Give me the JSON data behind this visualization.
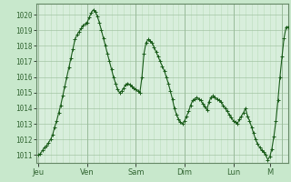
{
  "background_color": "#c8e8cc",
  "plot_bg_color": "#d8eedc",
  "line_color": "#1a5c1a",
  "marker_color": "#1a5c1a",
  "grid_major_color": "#99bb99",
  "grid_minor_color": "#bbddbb",
  "ylim": [
    1010.5,
    1020.7
  ],
  "yticks": [
    1011,
    1012,
    1013,
    1014,
    1015,
    1016,
    1017,
    1018,
    1019,
    1020
  ],
  "day_labels": [
    "Jeu",
    "Ven",
    "Sam",
    "Dim",
    "Lun",
    "M"
  ],
  "day_positions": [
    0,
    24,
    48,
    72,
    96,
    114
  ],
  "xlim": [
    -1,
    123
  ],
  "x_values": [
    0,
    1,
    2,
    3,
    4,
    5,
    6,
    7,
    8,
    9,
    10,
    11,
    12,
    13,
    14,
    15,
    16,
    17,
    18,
    19,
    20,
    21,
    22,
    23,
    24,
    25,
    26,
    27,
    28,
    29,
    30,
    31,
    32,
    33,
    34,
    35,
    36,
    37,
    38,
    39,
    40,
    41,
    42,
    43,
    44,
    45,
    46,
    47,
    48,
    49,
    50,
    51,
    52,
    53,
    54,
    55,
    56,
    57,
    58,
    59,
    60,
    61,
    62,
    63,
    64,
    65,
    66,
    67,
    68,
    69,
    70,
    71,
    72,
    73,
    74,
    75,
    76,
    77,
    78,
    79,
    80,
    81,
    82,
    83,
    84,
    85,
    86,
    87,
    88,
    89,
    90,
    91,
    92,
    93,
    94,
    95,
    96,
    97,
    98,
    99,
    100,
    101,
    102,
    103,
    104,
    105,
    106,
    107,
    108,
    109,
    110,
    111,
    112,
    113,
    114,
    115,
    116,
    117,
    118,
    119,
    120,
    121,
    122,
    123
  ],
  "y_values": [
    1011.0,
    1011.1,
    1011.3,
    1011.5,
    1011.6,
    1011.8,
    1012.0,
    1012.3,
    1012.8,
    1013.2,
    1013.7,
    1014.2,
    1014.8,
    1015.4,
    1016.0,
    1016.6,
    1017.2,
    1017.8,
    1018.4,
    1018.7,
    1018.9,
    1019.1,
    1019.3,
    1019.4,
    1019.5,
    1019.8,
    1020.1,
    1020.3,
    1020.2,
    1019.9,
    1019.5,
    1019.0,
    1018.5,
    1018.0,
    1017.5,
    1017.0,
    1016.5,
    1016.0,
    1015.6,
    1015.2,
    1015.0,
    1015.1,
    1015.3,
    1015.5,
    1015.6,
    1015.5,
    1015.4,
    1015.3,
    1015.2,
    1015.1,
    1015.0,
    1016.0,
    1017.5,
    1018.2,
    1018.4,
    1018.3,
    1018.2,
    1017.9,
    1017.6,
    1017.3,
    1017.0,
    1016.7,
    1016.4,
    1016.0,
    1015.6,
    1015.1,
    1014.6,
    1014.0,
    1013.6,
    1013.3,
    1013.1,
    1013.0,
    1013.2,
    1013.5,
    1013.8,
    1014.2,
    1014.5,
    1014.6,
    1014.7,
    1014.6,
    1014.5,
    1014.3,
    1014.1,
    1013.9,
    1014.4,
    1014.7,
    1014.8,
    1014.7,
    1014.6,
    1014.5,
    1014.4,
    1014.2,
    1014.0,
    1013.8,
    1013.6,
    1013.4,
    1013.2,
    1013.1,
    1013.0,
    1013.3,
    1013.5,
    1013.7,
    1014.0,
    1013.5,
    1013.2,
    1012.8,
    1012.4,
    1012.0,
    1011.7,
    1011.5,
    1011.3,
    1011.2,
    1011.0,
    1010.7,
    1010.9,
    1011.4,
    1012.2,
    1013.2,
    1014.5,
    1016.0,
    1017.3,
    1018.5,
    1019.2,
    1019.2
  ]
}
